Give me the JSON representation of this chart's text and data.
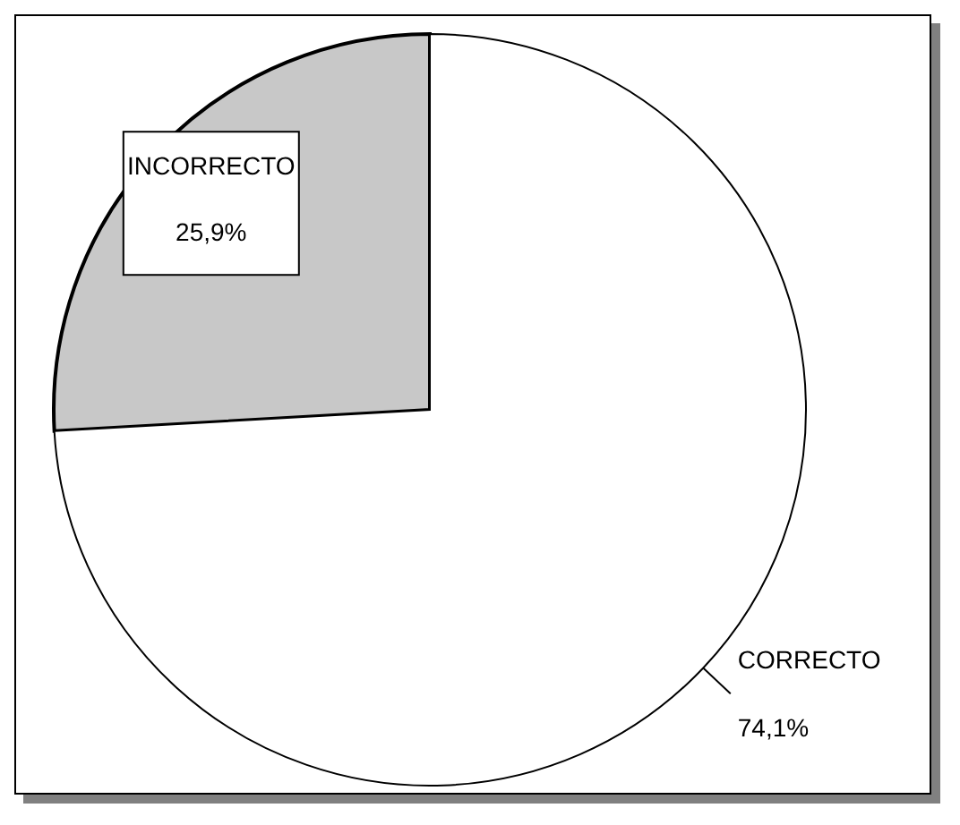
{
  "chart_data": {
    "type": "pie",
    "categories": [
      "INCORRECTO",
      "CORRECTO"
    ],
    "values": [
      25.9,
      74.1
    ],
    "colors": [
      "#c8c8c8",
      "#ffffff"
    ],
    "value_labels": [
      "25,9%",
      "74,1%"
    ]
  }
}
